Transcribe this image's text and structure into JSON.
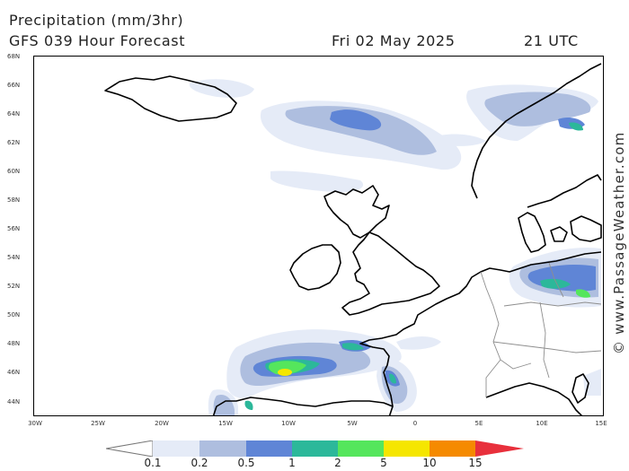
{
  "header": {
    "title": "Precipitation (mm/3hr)",
    "subtitle": "GFS 039 Hour Forecast",
    "date": "Fri 02 May 2025",
    "time": "21 UTC"
  },
  "map": {
    "lat_labels": [
      "68N",
      "66N",
      "64N",
      "62N",
      "60N",
      "58N",
      "56N",
      "54N",
      "52N",
      "50N",
      "48N",
      "46N",
      "44N"
    ],
    "lon_labels": [
      "30W",
      "25W",
      "20W",
      "15W",
      "10W",
      "5W",
      "0",
      "5E",
      "10E",
      "15E"
    ],
    "credit": "© www.PassageWeather.com"
  },
  "legend": {
    "labels": [
      "0.1",
      "0.2",
      "0.5",
      "1",
      "2",
      "5",
      "10",
      "15"
    ],
    "colors": [
      "#e5ebf7",
      "#aebedf",
      "#5f85d6",
      "#2cb89a",
      "#55e65c",
      "#f5e600",
      "#f58a00",
      "#e8303c"
    ]
  }
}
